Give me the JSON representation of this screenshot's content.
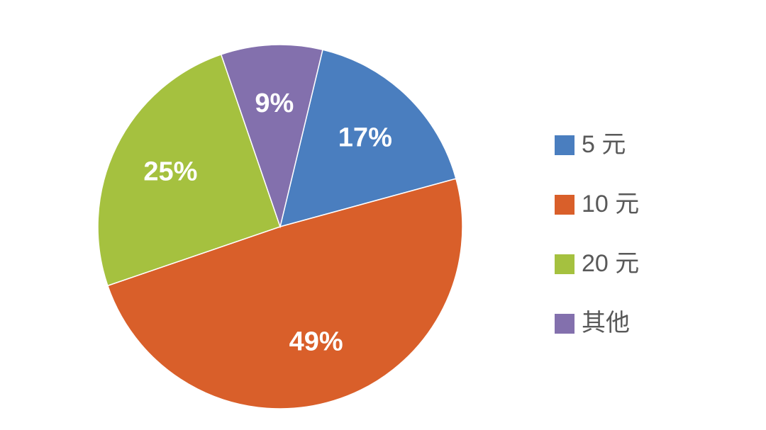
{
  "chart_data": {
    "type": "pie",
    "categories": [
      "5 元",
      "10 元",
      "20 元",
      "其他"
    ],
    "values": [
      17,
      49,
      25,
      9
    ],
    "value_labels": [
      "17%",
      "49%",
      "25%",
      "9%"
    ],
    "colors": [
      "#4a7ebf",
      "#d95f2a",
      "#a5c13f",
      "#8370ad"
    ],
    "legend": "right"
  }
}
